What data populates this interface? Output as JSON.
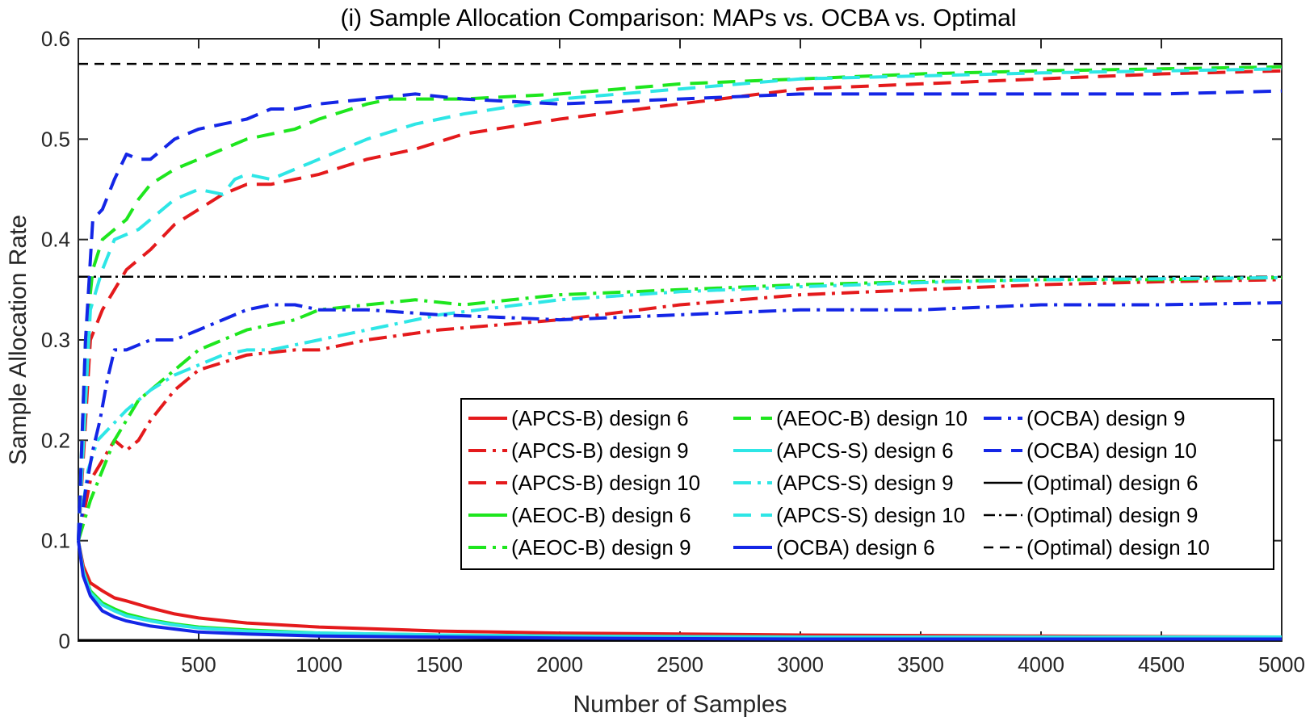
{
  "chart_data": {
    "type": "line",
    "title": "(i) Sample Allocation Comparison: MAPs vs. OCBA vs. Optimal",
    "xlabel": "Number of Samples",
    "ylabel": "Sample Allocation Rate",
    "xlim": [
      0,
      5000
    ],
    "ylim": [
      0,
      0.6
    ],
    "xticks": [
      500,
      1000,
      1500,
      2000,
      2500,
      3000,
      3500,
      4000,
      4500,
      5000
    ],
    "xtick_labels": [
      "500",
      "1000",
      "1500",
      "2000",
      "2500",
      "3000",
      "3500",
      "4000",
      "4500",
      "5000"
    ],
    "yticks": [
      0,
      0.1,
      0.2,
      0.3,
      0.4,
      0.5,
      0.6
    ],
    "ytick_labels": [
      "0",
      "0.1",
      "0.2",
      "0.3",
      "0.4",
      "0.5",
      "0.6"
    ],
    "grid": false,
    "legend_location": "lower-right",
    "series": [
      {
        "name": "(APCS-B) design 6",
        "color": "#e41a1c",
        "dash": "solid",
        "x": [
          0,
          20,
          50,
          100,
          150,
          200,
          300,
          400,
          500,
          700,
          1000,
          1500,
          2000,
          3000,
          4000,
          5000
        ],
        "y": [
          0.1,
          0.075,
          0.058,
          0.05,
          0.043,
          0.04,
          0.033,
          0.027,
          0.023,
          0.018,
          0.014,
          0.01,
          0.008,
          0.006,
          0.005,
          0.004
        ]
      },
      {
        "name": "(APCS-B) design 9",
        "color": "#e41a1c",
        "dash": "dashdot",
        "x": [
          0,
          50,
          100,
          150,
          200,
          250,
          300,
          400,
          500,
          700,
          900,
          1000,
          1200,
          1500,
          2000,
          2500,
          3000,
          3500,
          4000,
          4500,
          5000
        ],
        "y": [
          0.1,
          0.16,
          0.18,
          0.2,
          0.19,
          0.2,
          0.22,
          0.25,
          0.27,
          0.285,
          0.29,
          0.29,
          0.3,
          0.31,
          0.32,
          0.335,
          0.345,
          0.35,
          0.355,
          0.358,
          0.36
        ]
      },
      {
        "name": "(APCS-B) design 10",
        "color": "#e41a1c",
        "dash": "dash",
        "x": [
          0,
          50,
          100,
          150,
          200,
          300,
          400,
          500,
          600,
          700,
          800,
          900,
          1000,
          1200,
          1400,
          1600,
          2000,
          2500,
          3000,
          3500,
          4000,
          4500,
          5000
        ],
        "y": [
          0.1,
          0.3,
          0.33,
          0.35,
          0.37,
          0.39,
          0.415,
          0.43,
          0.445,
          0.455,
          0.455,
          0.46,
          0.465,
          0.48,
          0.49,
          0.505,
          0.52,
          0.535,
          0.55,
          0.555,
          0.56,
          0.565,
          0.568
        ]
      },
      {
        "name": "(AEOC-B) design 6",
        "color": "#1ee61e",
        "dash": "solid",
        "x": [
          0,
          20,
          50,
          100,
          150,
          200,
          300,
          400,
          500,
          700,
          1000,
          1500,
          2000,
          3000,
          4000,
          5000
        ],
        "y": [
          0.1,
          0.07,
          0.05,
          0.038,
          0.032,
          0.027,
          0.021,
          0.017,
          0.014,
          0.011,
          0.008,
          0.006,
          0.005,
          0.004,
          0.003,
          0.003
        ]
      },
      {
        "name": "(AEOC-B) design 9",
        "color": "#1ee61e",
        "dash": "dashdot",
        "x": [
          0,
          50,
          100,
          150,
          200,
          250,
          300,
          400,
          500,
          600,
          700,
          800,
          900,
          1000,
          1200,
          1400,
          1600,
          2000,
          2500,
          3000,
          3500,
          4000,
          4500,
          5000
        ],
        "y": [
          0.1,
          0.14,
          0.17,
          0.2,
          0.22,
          0.24,
          0.25,
          0.27,
          0.29,
          0.3,
          0.31,
          0.315,
          0.32,
          0.33,
          0.335,
          0.34,
          0.335,
          0.345,
          0.35,
          0.355,
          0.358,
          0.36,
          0.36,
          0.362
        ]
      },
      {
        "name": "(AEOC-B) design 10",
        "color": "#1ee61e",
        "dash": "dash",
        "x": [
          0,
          30,
          60,
          100,
          150,
          200,
          250,
          300,
          400,
          500,
          600,
          700,
          800,
          900,
          1000,
          1200,
          1300,
          1500,
          1600,
          2000,
          2500,
          3000,
          3500,
          4000,
          4500,
          5000
        ],
        "y": [
          0.1,
          0.3,
          0.37,
          0.4,
          0.41,
          0.42,
          0.44,
          0.455,
          0.47,
          0.48,
          0.49,
          0.5,
          0.505,
          0.51,
          0.52,
          0.535,
          0.54,
          0.54,
          0.54,
          0.545,
          0.555,
          0.56,
          0.565,
          0.568,
          0.57,
          0.572
        ]
      },
      {
        "name": "(APCS-S) design 6",
        "color": "#2ee6e6",
        "dash": "solid",
        "x": [
          0,
          20,
          50,
          100,
          150,
          200,
          300,
          400,
          500,
          700,
          1000,
          1500,
          2000,
          3000,
          4000,
          5000
        ],
        "y": [
          0.1,
          0.07,
          0.048,
          0.036,
          0.03,
          0.025,
          0.02,
          0.016,
          0.013,
          0.01,
          0.008,
          0.006,
          0.005,
          0.004,
          0.004,
          0.004
        ]
      },
      {
        "name": "(APCS-S) design 9",
        "color": "#2ee6e6",
        "dash": "dashdot",
        "x": [
          0,
          40,
          80,
          120,
          160,
          200,
          300,
          400,
          500,
          600,
          700,
          800,
          900,
          1000,
          1200,
          1500,
          2000,
          2500,
          3000,
          3500,
          4000,
          4500,
          5000
        ],
        "y": [
          0.1,
          0.17,
          0.2,
          0.21,
          0.22,
          0.23,
          0.25,
          0.265,
          0.275,
          0.285,
          0.29,
          0.29,
          0.295,
          0.3,
          0.31,
          0.325,
          0.34,
          0.348,
          0.353,
          0.357,
          0.36,
          0.361,
          0.362
        ]
      },
      {
        "name": "(APCS-S) design 10",
        "color": "#2ee6e6",
        "dash": "dash",
        "x": [
          0,
          50,
          100,
          150,
          200,
          250,
          300,
          400,
          500,
          600,
          650,
          700,
          800,
          900,
          1000,
          1200,
          1400,
          1600,
          2000,
          2500,
          3000,
          3500,
          4000,
          4500,
          5000
        ],
        "y": [
          0.1,
          0.33,
          0.37,
          0.4,
          0.405,
          0.41,
          0.42,
          0.44,
          0.45,
          0.445,
          0.46,
          0.465,
          0.46,
          0.47,
          0.48,
          0.5,
          0.515,
          0.525,
          0.54,
          0.55,
          0.56,
          0.563,
          0.566,
          0.568,
          0.57
        ]
      },
      {
        "name": "(OCBA) design 6",
        "color": "#1426e6",
        "dash": "solid",
        "x": [
          0,
          20,
          50,
          100,
          150,
          200,
          300,
          400,
          500,
          700,
          1000,
          1500,
          2000,
          3000,
          4000,
          5000
        ],
        "y": [
          0.1,
          0.065,
          0.045,
          0.03,
          0.024,
          0.02,
          0.015,
          0.012,
          0.009,
          0.007,
          0.005,
          0.004,
          0.003,
          0.002,
          0.002,
          0.002
        ]
      },
      {
        "name": "(OCBA) design 9",
        "color": "#1426e6",
        "dash": "dashdot",
        "x": [
          0,
          30,
          60,
          90,
          120,
          150,
          200,
          300,
          400,
          500,
          600,
          700,
          800,
          900,
          1000,
          1200,
          1500,
          2000,
          2500,
          3000,
          3500,
          4000,
          4500,
          5000
        ],
        "y": [
          0.1,
          0.15,
          0.19,
          0.22,
          0.26,
          0.29,
          0.29,
          0.3,
          0.3,
          0.31,
          0.32,
          0.33,
          0.335,
          0.335,
          0.33,
          0.33,
          0.325,
          0.32,
          0.325,
          0.33,
          0.33,
          0.335,
          0.335,
          0.337
        ]
      },
      {
        "name": "(OCBA) design 10",
        "color": "#1426e6",
        "dash": "dash",
        "x": [
          0,
          30,
          60,
          100,
          150,
          200,
          250,
          300,
          350,
          400,
          500,
          600,
          700,
          800,
          900,
          1000,
          1200,
          1400,
          1600,
          2000,
          2500,
          3000,
          3500,
          4000,
          4500,
          5000
        ],
        "y": [
          0.1,
          0.3,
          0.42,
          0.43,
          0.46,
          0.485,
          0.48,
          0.48,
          0.49,
          0.5,
          0.51,
          0.515,
          0.52,
          0.53,
          0.53,
          0.535,
          0.54,
          0.545,
          0.54,
          0.535,
          0.54,
          0.545,
          0.545,
          0.545,
          0.545,
          0.548
        ]
      },
      {
        "name": "(Optimal) design 6",
        "color": "#000000",
        "dash": "solid",
        "x": [
          0,
          5000
        ],
        "y": [
          0.001,
          0.001
        ]
      },
      {
        "name": "(Optimal) design 9",
        "color": "#000000",
        "dash": "dashdot",
        "x": [
          0,
          5000
        ],
        "y": [
          0.363,
          0.363
        ]
      },
      {
        "name": "(Optimal) design 10",
        "color": "#000000",
        "dash": "dash",
        "x": [
          0,
          5000
        ],
        "y": [
          0.575,
          0.575
        ]
      }
    ]
  }
}
